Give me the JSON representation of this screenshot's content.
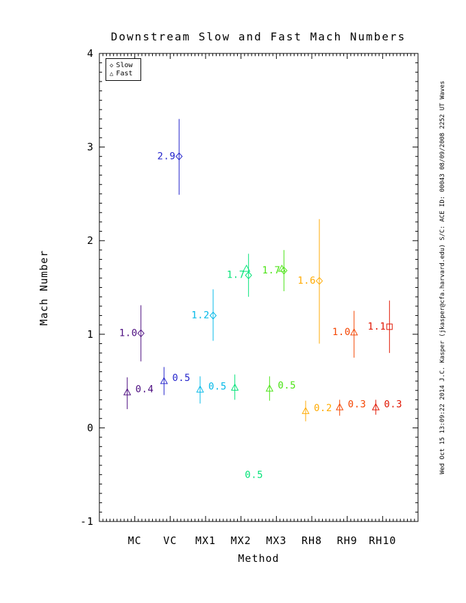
{
  "title": "Downstream Slow and Fast Mach Numbers",
  "sidenote": "Wed Oct 15 13:09:22 2014   J.C. Kasper (jkasper@cfa.harvard.edu)   S/C: ACE ID: 00043 08/09/2008   2252 UT Waves",
  "legend": {
    "items": [
      {
        "icon": "◇",
        "label": "Slow"
      },
      {
        "icon": "△",
        "label": "Fast"
      }
    ]
  },
  "chart_data": {
    "type": "scatter",
    "title": "Downstream Slow and Fast Mach Numbers",
    "xlabel": "Method",
    "ylabel": "Mach Number",
    "ylim": [
      -1,
      4
    ],
    "yticks": [
      4,
      3,
      2,
      1,
      0,
      -1
    ],
    "y_minor_step": 0.1,
    "x_minor_step": 0.1,
    "x_slots": 9,
    "grid": false,
    "legend_position": "top-left",
    "methods": [
      {
        "name": "MC",
        "color": "#4b0c7f"
      },
      {
        "name": "VC",
        "color": "#2424cc"
      },
      {
        "name": "MX1",
        "color": "#00b8e8"
      },
      {
        "name": "MX2",
        "color": "#00e377"
      },
      {
        "name": "MX3",
        "color": "#49e312"
      },
      {
        "name": "RH8",
        "color": "#ffaa00"
      },
      {
        "name": "RH9",
        "color": "#f44400"
      },
      {
        "name": "RH10",
        "color": "#e01400"
      }
    ],
    "points": [
      {
        "method": 0,
        "mode": "slow",
        "marker": "diamond",
        "dx": 9,
        "value": 1.01,
        "err": [
          0.71,
          1.31
        ],
        "label": "1.0",
        "label_side": "left"
      },
      {
        "method": 0,
        "mode": "fast",
        "marker": "triangle",
        "dx": -11,
        "value": 0.38,
        "err": [
          0.2,
          0.54
        ],
        "label": "0.4",
        "label_side": "right"
      },
      {
        "method": 1,
        "mode": "slow",
        "marker": "diamond",
        "dx": 13,
        "value": 2.9,
        "err": [
          2.49,
          3.3
        ],
        "label": "2.9",
        "label_side": "left"
      },
      {
        "method": 1,
        "mode": "fast",
        "marker": "triangle",
        "dx": -9,
        "value": 0.5,
        "err": [
          0.35,
          0.65
        ],
        "label": "0.5",
        "label_side": "right"
      },
      {
        "method": 2,
        "mode": "slow",
        "marker": "diamond",
        "dx": 11,
        "value": 1.2,
        "err": [
          0.93,
          1.48
        ],
        "label": "1.2",
        "label_side": "left"
      },
      {
        "method": 2,
        "mode": "fast",
        "marker": "triangle",
        "dx": -8,
        "value": 0.41,
        "err": [
          0.26,
          0.55
        ],
        "label": "0.5",
        "label_side": "right"
      },
      {
        "method": 3,
        "mode": "fast",
        "marker": "triangle",
        "dx": 8,
        "value": 1.7,
        "err": null,
        "label": "",
        "label_side": "left"
      },
      {
        "method": 3,
        "mode": "slow",
        "marker": "diamond",
        "dx": 11,
        "value": 1.63,
        "err": [
          1.4,
          1.86
        ],
        "label": "1.7",
        "label_side": "left"
      },
      {
        "method": 3,
        "mode": "fast",
        "marker": "triangle",
        "dx": -9,
        "value": 0.43,
        "err": [
          0.3,
          0.57
        ],
        "label": "",
        "label_side": "right"
      },
      {
        "method": 4,
        "mode": "fast",
        "marker": "triangle",
        "dx": 8,
        "value": 1.7,
        "err": null,
        "label": "",
        "label_side": "left"
      },
      {
        "method": 4,
        "mode": "slow",
        "marker": "diamond",
        "dx": 11,
        "value": 1.68,
        "err": [
          1.46,
          1.9
        ],
        "label": "1.7",
        "label_side": "left"
      },
      {
        "method": 4,
        "mode": "fast",
        "marker": "triangle",
        "dx": -10,
        "value": 0.42,
        "err": [
          0.29,
          0.55
        ],
        "label": "0.5",
        "label_side": "right"
      },
      {
        "method": 5,
        "mode": "slow",
        "marker": "diamond",
        "dx": 11,
        "value": 1.57,
        "err": [
          0.9,
          2.23
        ],
        "label": "1.6",
        "label_side": "left"
      },
      {
        "method": 5,
        "mode": "fast",
        "marker": "triangle",
        "dx": -9,
        "value": 0.18,
        "err": [
          0.07,
          0.29
        ],
        "label": "0.2",
        "label_side": "right"
      },
      {
        "method": 6,
        "mode": "fast",
        "marker": "triangle",
        "dx": 10,
        "value": 1.02,
        "err": [
          0.75,
          1.25
        ],
        "label": "1.0",
        "label_side": "left"
      },
      {
        "method": 6,
        "mode": "fast",
        "marker": "triangle",
        "dx": -11,
        "value": 0.22,
        "err": [
          0.13,
          0.3
        ],
        "label": "0.3",
        "label_side": "right"
      },
      {
        "method": 7,
        "mode": "slow",
        "marker": "square",
        "dx": 10,
        "value": 1.08,
        "err": [
          0.8,
          1.36
        ],
        "label": "1.1",
        "label_side": "left"
      },
      {
        "method": 7,
        "mode": "fast",
        "marker": "triangle",
        "dx": -10,
        "value": 0.22,
        "err": [
          0.14,
          0.3
        ],
        "label": "0.3",
        "label_side": "right"
      }
    ],
    "annotations": [
      {
        "method": 3,
        "dx": 19,
        "value": -0.5,
        "label": "0.5"
      }
    ]
  }
}
